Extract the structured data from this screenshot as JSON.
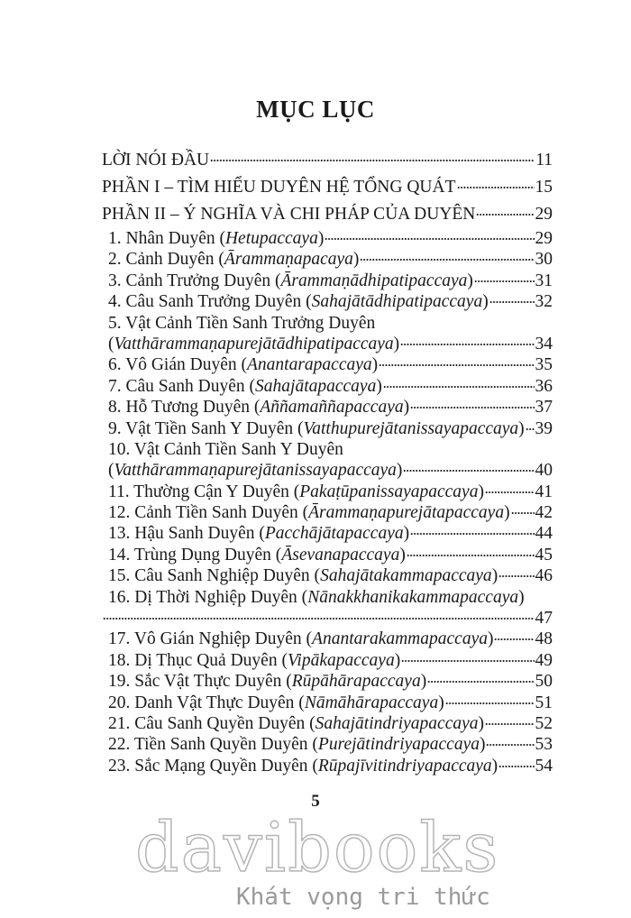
{
  "title": "MỤC LỤC",
  "entries": [
    {
      "level": "top",
      "text": "LỜI NÓI ĐẦU",
      "page": "11"
    },
    {
      "level": "top",
      "text": "PHẦN I – TÌM HIỂU DUYÊN HỆ TỔNG QUÁT",
      "page": "15"
    },
    {
      "level": "top",
      "text": "PHẦN II – Ý NGHĨA VÀ CHI PHÁP CỦA DUYÊN",
      "page": "29"
    },
    {
      "level": "sub",
      "text": "1. Nhân Duyên (",
      "pali": "Hetupaccaya",
      "page": "29"
    },
    {
      "level": "sub",
      "text": "2. Cảnh Duyên (",
      "pali": "Ārammaṇapacaya",
      "page": "30"
    },
    {
      "level": "sub",
      "text": "3. Cảnh Trưởng Duyên (",
      "pali": "Ārammaṇādhipatipaccaya",
      "page": "31"
    },
    {
      "level": "sub",
      "text": "4. Câu Sanh Trưởng Duyên  (",
      "pali": "Sahajātādhipatipaccaya",
      "page": "32"
    },
    {
      "level": "sub",
      "text": "5. Vật Cảnh Tiền Sanh Trưởng Duyên",
      "wrap": "pali",
      "pali": "Vatthārammaṇapurejātādhipatipaccaya",
      "page": "34"
    },
    {
      "level": "sub",
      "text": "6. Vô Gián Duyên (",
      "pali": "Anantarapaccaya",
      "page": "35"
    },
    {
      "level": "sub",
      "text": "7. Câu Sanh Duyên (",
      "pali": "Sahajātapaccaya",
      "page": "36"
    },
    {
      "level": "sub",
      "text": "8. Hỗ Tương Duyên (",
      "pali": "Aññamaññapaccaya",
      "page": "37"
    },
    {
      "level": "sub",
      "text": "9. Vật Tiền Sanh Y Duyên (",
      "pali": "Vatthupurejātanissayapaccaya",
      "page": "39"
    },
    {
      "level": "sub",
      "text": "10. Vật Cảnh Tiền Sanh Y Duyên",
      "wrap": "pali",
      "pali": "Vatthārammaṇapurejātanissayapaccaya",
      "page": "40"
    },
    {
      "level": "sub",
      "text": "11. Thường Cận Y Duyên (",
      "pali": "Pakaṭūpanissayapaccaya",
      "page": "41"
    },
    {
      "level": "sub",
      "text": "12. Cảnh Tiền Sanh Duyên (",
      "pali": "Ārammaṇapurejātapaccaya",
      "page": "42"
    },
    {
      "level": "sub",
      "text": "13. Hậu Sanh Duyên (",
      "pali": "Pacchājātapaccaya",
      "page": "44"
    },
    {
      "level": "sub",
      "text": "14. Trùng Dụng Duyên (",
      "pali": "Āsevanapaccaya",
      "page": "45"
    },
    {
      "level": "sub",
      "text": "15. Câu Sanh Nghiệp Duyên (",
      "pali": "Sahajātakammapaccaya",
      "page": "46"
    },
    {
      "level": "sub",
      "text": "16. Dị Thời Nghiệp Duyên (",
      "pali": "Nānakkhanikakammapaccaya",
      "wrap": "page",
      "page": "47"
    },
    {
      "level": "sub",
      "text": "17. Vô Gián Nghiệp Duyên (",
      "pali": "Anantarakammapaccaya",
      "page": "48"
    },
    {
      "level": "sub",
      "text": "18. Dị Thục Quả Duyên (",
      "pali": "Vipākapaccaya",
      "page": "49"
    },
    {
      "level": "sub",
      "text": "19. Sắc Vật Thực Duyên (",
      "pali": "Rūpāhārapaccaya",
      "page": "50"
    },
    {
      "level": "sub",
      "text": "20. Danh Vật Thực Duyên (",
      "pali": "Nāmāhārapaccaya",
      "page": "51"
    },
    {
      "level": "sub",
      "text": "21. Câu Sanh Quyền Duyên (",
      "pali": "Sahajātindriyapaccaya",
      "page": "52"
    },
    {
      "level": "sub",
      "text": "22. Tiền Sanh Quyền Duyên (",
      "pali": "Purejātindriyapaccaya",
      "page": "53"
    },
    {
      "level": "sub",
      "text": "23. Sắc Mạng Quyền Duyên (",
      "pali": "Rūpajīvitindriyapaccaya",
      "page": "54"
    }
  ],
  "page_number": "5",
  "watermark": {
    "brand": "davibooks",
    "slogan": "Khát vọng tri thức"
  }
}
